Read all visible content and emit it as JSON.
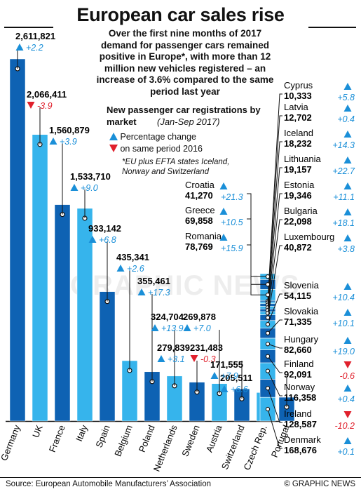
{
  "title": "European car sales rise",
  "intro": "Over the first nine months of 2017 demand for passenger cars remained positive in Europe*, with more than 12 million new vehicles registered – an increase of 3.6% compared to the same period last year",
  "legend": {
    "title": "New passenger car registrations by market",
    "subtitle": "(Jan-Sep 2017)",
    "pct_label_1": "Percentage change",
    "pct_label_2": "on same period 2016",
    "note_1": "*EU plus EFTA states Iceland,",
    "note_2": "Norway and Switzerland"
  },
  "watermark": "GRAPHIC NEWS",
  "source": "Source: European Automobile Manufacturers’ Association",
  "credit": "© GRAPHIC NEWS",
  "colors": {
    "up": "#1a8fd8",
    "down": "#e0202c",
    "bar_dark": "#0e62b3",
    "bar_light": "#36b4ec"
  },
  "chart_data": {
    "type": "bar",
    "title": "European car sales rise",
    "main_bars": [
      {
        "country": "Germany",
        "value": 2611821,
        "label": "2,611,821",
        "change": 2.2,
        "change_label": "+2.2"
      },
      {
        "country": "UK",
        "value": 2066411,
        "label": "2,066,411",
        "change": -3.9,
        "change_label": "-3.9"
      },
      {
        "country": "France",
        "value": 1560879,
        "label": "1,560,879",
        "change": 3.9,
        "change_label": "+3.9"
      },
      {
        "country": "Italy",
        "value": 1533710,
        "label": "1,533,710",
        "change": 9.0,
        "change_label": "+9.0"
      },
      {
        "country": "Spain",
        "value": 933142,
        "label": "933,142",
        "change": 6.8,
        "change_label": "+6.8"
      },
      {
        "country": "Belgium",
        "value": 435341,
        "label": "435,341",
        "change": 2.6,
        "change_label": "+2.6"
      },
      {
        "country": "Poland",
        "value": 355461,
        "label": "355,461",
        "change": 17.3,
        "change_label": "+17.3"
      },
      {
        "country": "Netherlands",
        "value": 324704,
        "label": "324,704",
        "change": 13.9,
        "change_label": "+13.9"
      },
      {
        "country": "Sweden",
        "value": 279839,
        "label": "279,839",
        "change": 3.1,
        "change_label": "+3.1"
      },
      {
        "country": "Austria",
        "value": 269878,
        "label": "269,878",
        "change": 7.0,
        "change_label": "+7.0"
      },
      {
        "country": "Switzerland",
        "value": 231483,
        "label": "231,483",
        "change": -0.3,
        "change_label": "-0.3"
      },
      {
        "country": "Czech Rep.",
        "value": 205511,
        "label": "205,511",
        "change": 6.6,
        "change_label": "+6.6"
      },
      {
        "country": "Portugal",
        "value": 171555,
        "label": "171,555",
        "change": 7.9,
        "change_label": "+7.9"
      }
    ],
    "stack_bar": [
      {
        "country": "Croatia",
        "value": 41270,
        "label": "41,270",
        "change": 21.3,
        "change_label": "+21.3"
      },
      {
        "country": "Greece",
        "value": 69858,
        "label": "69,858",
        "change": 10.5,
        "change_label": "+10.5"
      },
      {
        "country": "Romania",
        "value": 78769,
        "label": "78,769",
        "change": 15.9,
        "change_label": "+15.9"
      },
      {
        "country": "Cyprus",
        "value": 10333,
        "label": "10,333",
        "change": 5.8,
        "change_label": "+5.8"
      },
      {
        "country": "Latvia",
        "value": 12702,
        "label": "12,702",
        "change": 0.4,
        "change_label": "+0.4"
      },
      {
        "country": "Iceland",
        "value": 18232,
        "label": "18,232",
        "change": 14.3,
        "change_label": "+14.3"
      },
      {
        "country": "Lithuania",
        "value": 19157,
        "label": "19,157",
        "change": 22.7,
        "change_label": "+22.7"
      },
      {
        "country": "Estonia",
        "value": 19346,
        "label": "19,346",
        "change": 11.1,
        "change_label": "+11.1"
      },
      {
        "country": "Bulgaria",
        "value": 22098,
        "label": "22,098",
        "change": 18.1,
        "change_label": "+18.1"
      },
      {
        "country": "Luxembourg",
        "value": 40872,
        "label": "40,872",
        "change": 3.8,
        "change_label": "+3.8"
      },
      {
        "country": "Slovenia",
        "value": 54115,
        "label": "54,115",
        "change": 10.4,
        "change_label": "+10.4"
      },
      {
        "country": "Slovakia",
        "value": 71335,
        "label": "71,335",
        "change": 10.1,
        "change_label": "+10.1"
      },
      {
        "country": "Hungary",
        "value": 82660,
        "label": "82,660",
        "change": 19.0,
        "change_label": "+19.0"
      },
      {
        "country": "Finland",
        "value": 92091,
        "label": "92,091",
        "change": -0.6,
        "change_label": "-0.6"
      },
      {
        "country": "Norway",
        "value": 116358,
        "label": "116,358",
        "change": 0.4,
        "change_label": "+0.4"
      },
      {
        "country": "Ireland",
        "value": 128587,
        "label": "128,587",
        "change": -10.2,
        "change_label": "-10.2"
      },
      {
        "country": "Denmark",
        "value": 168676,
        "label": "168,676",
        "change": 0.1,
        "change_label": "+0.1"
      }
    ]
  }
}
